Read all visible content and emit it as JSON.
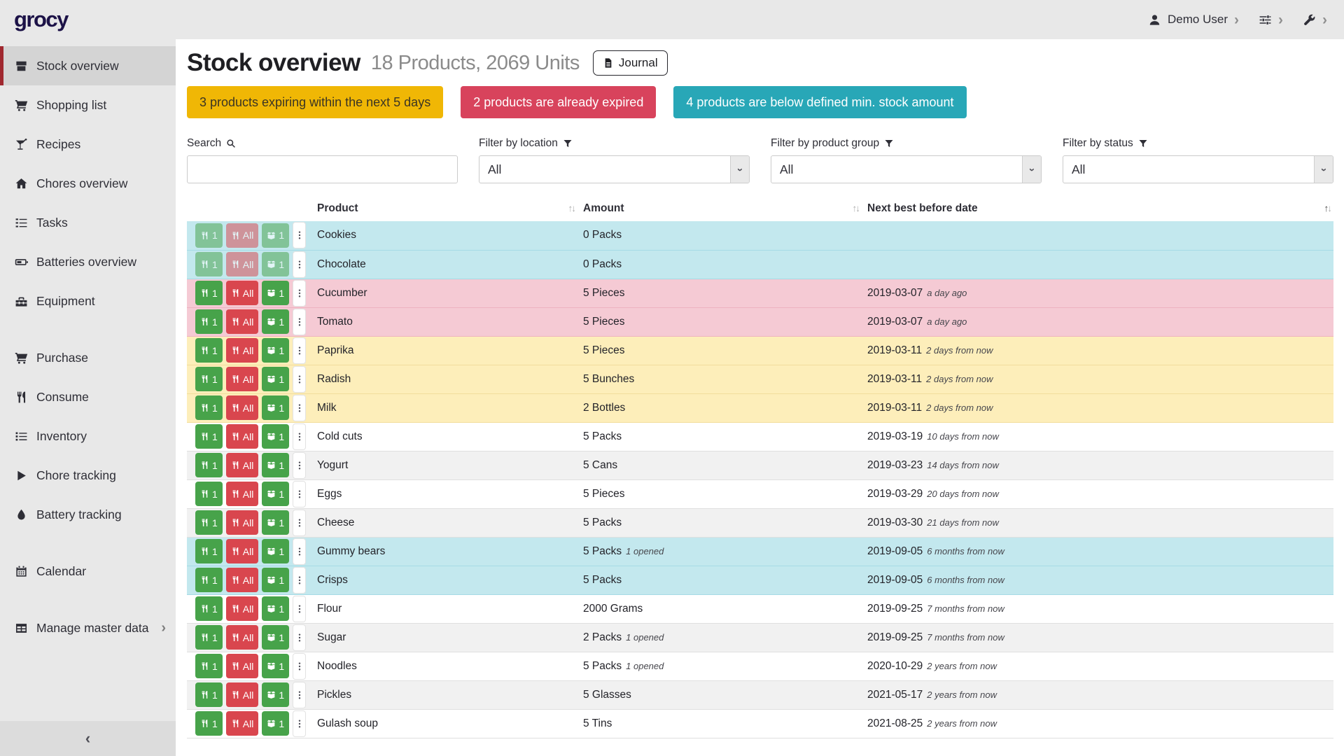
{
  "brand": "grocy",
  "topbar": {
    "user_label": "Demo User",
    "user_icon": "user-icon",
    "settings_icon": "sliders-icon",
    "admin_icon": "wrench-icon"
  },
  "sidebar": {
    "items": [
      {
        "label": "Stock overview",
        "icon": "boxes-icon",
        "active": true
      },
      {
        "label": "Shopping list",
        "icon": "cart-icon"
      },
      {
        "label": "Recipes",
        "icon": "cocktail-icon"
      },
      {
        "label": "Chores overview",
        "icon": "home-icon"
      },
      {
        "label": "Tasks",
        "icon": "tasks-icon"
      },
      {
        "label": "Batteries overview",
        "icon": "battery-icon"
      },
      {
        "label": "Equipment",
        "icon": "toolbox-icon"
      },
      {
        "label": "Purchase",
        "icon": "cart-icon",
        "gap_before": true
      },
      {
        "label": "Consume",
        "icon": "utensils-icon"
      },
      {
        "label": "Inventory",
        "icon": "list-icon"
      },
      {
        "label": "Chore tracking",
        "icon": "play-icon"
      },
      {
        "label": "Battery tracking",
        "icon": "drop-icon"
      },
      {
        "label": "Calendar",
        "icon": "calendar-icon",
        "gap_before": true
      },
      {
        "label": "Manage master data",
        "icon": "table-icon",
        "gap_before": true,
        "chevron": true
      }
    ]
  },
  "header": {
    "title": "Stock overview",
    "subtitle": "18 Products, 2069 Units",
    "journal_button": "Journal",
    "journal_icon": "file-icon"
  },
  "badges": [
    {
      "text": "3 products expiring within the next 5 days",
      "type": "warning"
    },
    {
      "text": "2 products are already expired",
      "type": "danger"
    },
    {
      "text": "4 products are below defined min. stock amount",
      "type": "info"
    }
  ],
  "filters": {
    "search_label": "Search",
    "search_value": "",
    "location_label": "Filter by location",
    "location_value": "All",
    "product_group_label": "Filter by product group",
    "product_group_value": "All",
    "status_label": "Filter by status",
    "status_value": "All"
  },
  "table": {
    "columns": [
      {
        "label": "Product"
      },
      {
        "label": "Amount"
      },
      {
        "label": "Next best before date",
        "sorted": "asc"
      }
    ],
    "row_buttons": {
      "consume_one": "1",
      "consume_all": "All",
      "open_one": "1"
    },
    "rows": [
      {
        "product": "Cookies",
        "amount": "0 Packs",
        "amount_note": "",
        "date": "",
        "date_note": "",
        "status": "info",
        "disabled": true
      },
      {
        "product": "Chocolate",
        "amount": "0 Packs",
        "amount_note": "",
        "date": "",
        "date_note": "",
        "status": "info",
        "disabled": true
      },
      {
        "product": "Cucumber",
        "amount": "5 Pieces",
        "amount_note": "",
        "date": "2019-03-07",
        "date_note": "a day ago",
        "status": "danger",
        "disabled": false
      },
      {
        "product": "Tomato",
        "amount": "5 Pieces",
        "amount_note": "",
        "date": "2019-03-07",
        "date_note": "a day ago",
        "status": "danger",
        "disabled": false
      },
      {
        "product": "Paprika",
        "amount": "5 Pieces",
        "amount_note": "",
        "date": "2019-03-11",
        "date_note": "2 days from now",
        "status": "warning",
        "disabled": false
      },
      {
        "product": "Radish",
        "amount": "5 Bunches",
        "amount_note": "",
        "date": "2019-03-11",
        "date_note": "2 days from now",
        "status": "warning",
        "disabled": false
      },
      {
        "product": "Milk",
        "amount": "2 Bottles",
        "amount_note": "",
        "date": "2019-03-11",
        "date_note": "2 days from now",
        "status": "warning",
        "disabled": false
      },
      {
        "product": "Cold cuts",
        "amount": "5 Packs",
        "amount_note": "",
        "date": "2019-03-19",
        "date_note": "10 days from now",
        "status": "",
        "disabled": false
      },
      {
        "product": "Yogurt",
        "amount": "5 Cans",
        "amount_note": "",
        "date": "2019-03-23",
        "date_note": "14 days from now",
        "status": "",
        "disabled": false
      },
      {
        "product": "Eggs",
        "amount": "5 Pieces",
        "amount_note": "",
        "date": "2019-03-29",
        "date_note": "20 days from now",
        "status": "",
        "disabled": false
      },
      {
        "product": "Cheese",
        "amount": "5 Packs",
        "amount_note": "",
        "date": "2019-03-30",
        "date_note": "21 days from now",
        "status": "",
        "disabled": false
      },
      {
        "product": "Gummy bears",
        "amount": "5 Packs",
        "amount_note": "1 opened",
        "date": "2019-09-05",
        "date_note": "6 months from now",
        "status": "info",
        "disabled": false
      },
      {
        "product": "Crisps",
        "amount": "5 Packs",
        "amount_note": "",
        "date": "2019-09-05",
        "date_note": "6 months from now",
        "status": "info",
        "disabled": false
      },
      {
        "product": "Flour",
        "amount": "2000 Grams",
        "amount_note": "",
        "date": "2019-09-25",
        "date_note": "7 months from now",
        "status": "",
        "disabled": false
      },
      {
        "product": "Sugar",
        "amount": "2 Packs",
        "amount_note": "1 opened",
        "date": "2019-09-25",
        "date_note": "7 months from now",
        "status": "",
        "disabled": false
      },
      {
        "product": "Noodles",
        "amount": "5 Packs",
        "amount_note": "1 opened",
        "date": "2020-10-29",
        "date_note": "2 years from now",
        "status": "",
        "disabled": false
      },
      {
        "product": "Pickles",
        "amount": "5 Glasses",
        "amount_note": "",
        "date": "2021-05-17",
        "date_note": "2 years from now",
        "status": "",
        "disabled": false
      },
      {
        "product": "Gulash soup",
        "amount": "5 Tins",
        "amount_note": "",
        "date": "2021-08-25",
        "date_note": "2 years from now",
        "status": "",
        "disabled": false
      }
    ]
  },
  "colors": {
    "chrome_bg": "#e8e8e8",
    "logo_navy": "#1c1247",
    "active_accent_red": "#a0282f",
    "badge_warning_bg": "#f0b705",
    "badge_danger_bg": "#d8435c",
    "badge_info_bg": "#28a7b7",
    "row_info_bg": "#c3e8ee",
    "row_danger_bg": "#f5cad4",
    "row_warning_bg": "#fdeeba",
    "button_green": "#47a34a",
    "button_red": "#d9464e"
  }
}
